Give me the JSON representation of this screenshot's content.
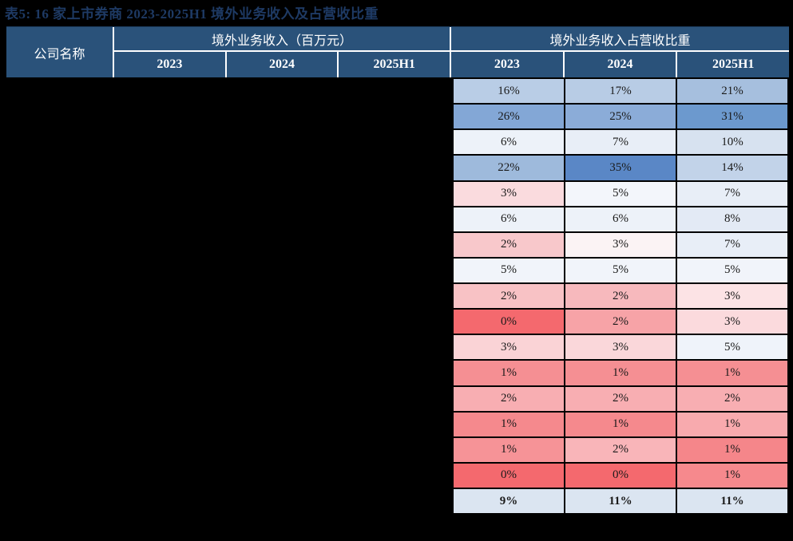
{
  "page": {
    "background": "#000000"
  },
  "title": {
    "text": "表5:  16 家上市券商 2023-2025H1 境外业务收入及占营收比重",
    "color": "#1E3A64"
  },
  "table": {
    "header": {
      "company": "公司名称",
      "revenue_group": "境外业务收入（百万元）",
      "pct_group": "境外业务收入占营收比重",
      "years_revenue": [
        "2023",
        "2024",
        "2025H1"
      ],
      "years_pct": [
        "2023",
        "2024",
        "2025H1"
      ],
      "bg_color": "#2A527A",
      "text_color": "#FFFFFF"
    },
    "heatmap_colors": {
      "high_blue": "#5A87C6",
      "mid_white": "#F1F4FA",
      "low_red": "#F4696E",
      "summary_row_bg": "#DBE5F1"
    },
    "rows": [
      {
        "pct": [
          "16%",
          "17%",
          "21%"
        ],
        "bg": [
          "#B9CDE6",
          "#B8CCE5",
          "#A6BFDE"
        ],
        "bold": false
      },
      {
        "pct": [
          "26%",
          "25%",
          "31%"
        ],
        "bg": [
          "#83A7D6",
          "#8BACD8",
          "#6C99CE"
        ],
        "bold": false
      },
      {
        "pct": [
          "6%",
          "7%",
          "10%"
        ],
        "bg": [
          "#EDF2F9",
          "#E8EEF7",
          "#D7E2F0"
        ],
        "bold": false
      },
      {
        "pct": [
          "22%",
          "35%",
          "14%"
        ],
        "bg": [
          "#9EBADC",
          "#5A87C6",
          "#C2D3E9"
        ],
        "bold": false
      },
      {
        "pct": [
          "3%",
          "5%",
          "7%"
        ],
        "bg": [
          "#FADBDE",
          "#F3F6FB",
          "#E8EEF7"
        ],
        "bold": false
      },
      {
        "pct": [
          "6%",
          "6%",
          "8%"
        ],
        "bg": [
          "#EDF2F9",
          "#EDF2F9",
          "#E3EAF5"
        ],
        "bold": false
      },
      {
        "pct": [
          "2%",
          "3%",
          "7%"
        ],
        "bg": [
          "#F8C8CB",
          "#FBF3F4",
          "#E8EEF7"
        ],
        "bold": false
      },
      {
        "pct": [
          "5%",
          "5%",
          "5%"
        ],
        "bg": [
          "#F1F4FA",
          "#F1F4FA",
          "#F1F4FA"
        ],
        "bold": false
      },
      {
        "pct": [
          "2%",
          "2%",
          "3%"
        ],
        "bg": [
          "#F8C2C5",
          "#F7B9BD",
          "#FCE3E5"
        ],
        "bold": false
      },
      {
        "pct": [
          "0%",
          "2%",
          "3%"
        ],
        "bg": [
          "#F4696E",
          "#F7A3A7",
          "#FBDADD"
        ],
        "bold": false
      },
      {
        "pct": [
          "3%",
          "3%",
          "5%"
        ],
        "bg": [
          "#FAD3D6",
          "#FAD7DA",
          "#EFF3FA"
        ],
        "bold": false
      },
      {
        "pct": [
          "1%",
          "1%",
          "1%"
        ],
        "bg": [
          "#F58F93",
          "#F58F93",
          "#F58F93"
        ],
        "bold": false
      },
      {
        "pct": [
          "2%",
          "2%",
          "2%"
        ],
        "bg": [
          "#F8AEB2",
          "#F8AEB2",
          "#F8AEB2"
        ],
        "bold": false
      },
      {
        "pct": [
          "1%",
          "1%",
          "1%"
        ],
        "bg": [
          "#F5898D",
          "#F5898D",
          "#F8AAAE"
        ],
        "bold": false
      },
      {
        "pct": [
          "1%",
          "2%",
          "1%"
        ],
        "bg": [
          "#F69397",
          "#F9B5B9",
          "#F5868A"
        ],
        "bold": false
      },
      {
        "pct": [
          "0%",
          "0%",
          "1%"
        ],
        "bg": [
          "#F4696E",
          "#F4696E",
          "#F6898D"
        ],
        "bold": false
      },
      {
        "pct": [
          "9%",
          "11%",
          "11%"
        ],
        "bg": [
          "#DBE5F1",
          "#DBE5F1",
          "#DBE5F1"
        ],
        "bold": true
      }
    ]
  }
}
